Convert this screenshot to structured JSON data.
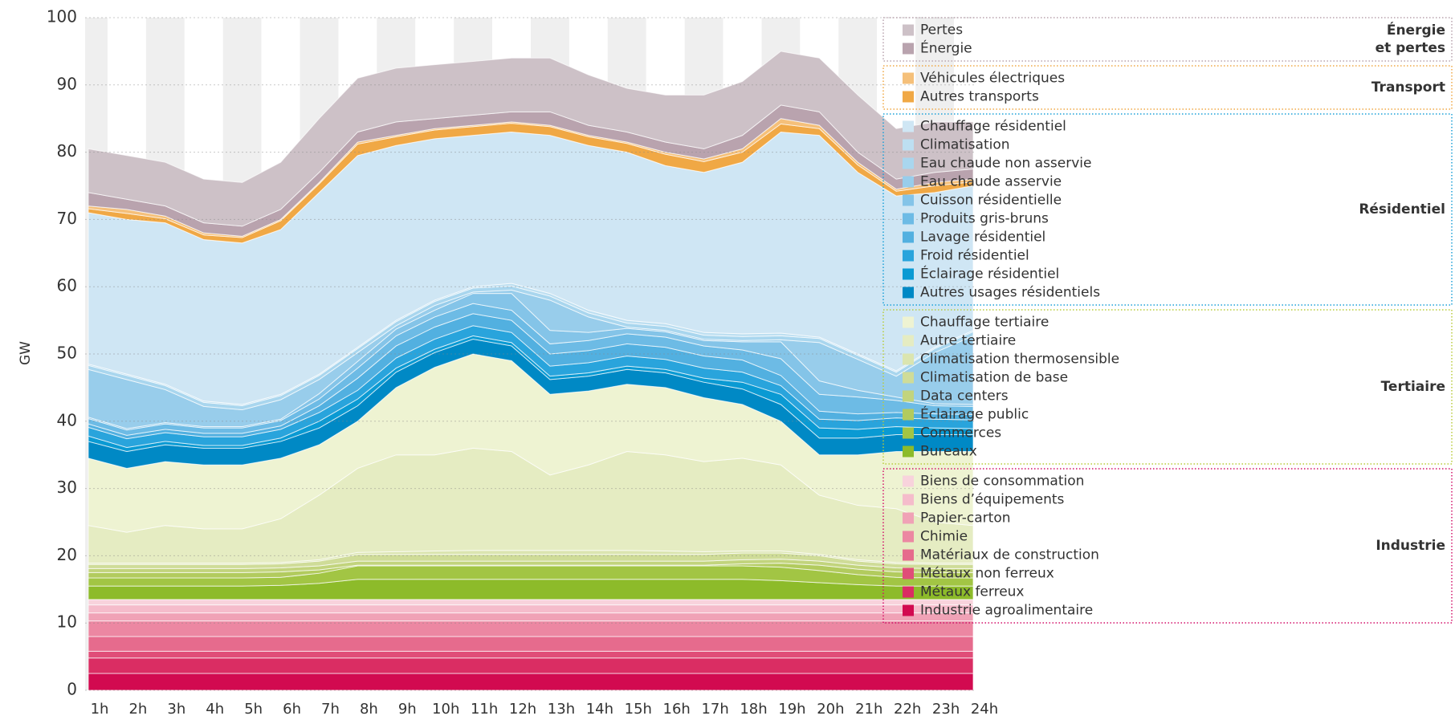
{
  "chart_data": {
    "type": "stacked_area",
    "y_label": "GW",
    "ylim": [
      0,
      100
    ],
    "yticks": [
      0,
      10,
      20,
      30,
      40,
      50,
      60,
      70,
      80,
      90,
      100
    ],
    "grid": true,
    "legend": "right",
    "categories": [
      "1h",
      "2h",
      "3h",
      "4h",
      "5h",
      "6h",
      "7h",
      "8h",
      "9h",
      "10h",
      "11h",
      "12h",
      "13h",
      "14h",
      "15h",
      "16h",
      "17h",
      "18h",
      "19h",
      "20h",
      "21h",
      "22h",
      "23h",
      "24h"
    ],
    "groups": [
      {
        "label": [
          "Industrie"
        ],
        "color": "#d4116a",
        "series": [
          {
            "name": "Industrie agroalimentaire",
            "color": "#d20a50",
            "values": [
              2.5,
              2.5,
              2.5,
              2.5,
              2.5,
              2.5,
              2.5,
              2.5,
              2.5,
              2.5,
              2.5,
              2.5,
              2.5,
              2.5,
              2.5,
              2.5,
              2.5,
              2.5,
              2.5,
              2.5,
              2.5,
              2.5,
              2.5,
              2.5
            ]
          },
          {
            "name": "Métaux ferreux",
            "color": "#da2d63",
            "values": [
              2.3,
              2.3,
              2.3,
              2.3,
              2.3,
              2.3,
              2.3,
              2.3,
              2.3,
              2.3,
              2.3,
              2.3,
              2.3,
              2.3,
              2.3,
              2.3,
              2.3,
              2.3,
              2.3,
              2.3,
              2.3,
              2.3,
              2.3,
              2.3
            ]
          },
          {
            "name": "Métaux non ferreux",
            "color": "#e04d78",
            "values": [
              1.0,
              1.0,
              1.0,
              1.0,
              1.0,
              1.0,
              1.0,
              1.0,
              1.0,
              1.0,
              1.0,
              1.0,
              1.0,
              1.0,
              1.0,
              1.0,
              1.0,
              1.0,
              1.0,
              1.0,
              1.0,
              1.0,
              1.0,
              1.0
            ]
          },
          {
            "name": "Matériaux de construction",
            "color": "#e66b8d",
            "values": [
              2.2,
              2.2,
              2.2,
              2.2,
              2.2,
              2.2,
              2.2,
              2.2,
              2.2,
              2.2,
              2.2,
              2.2,
              2.2,
              2.2,
              2.2,
              2.2,
              2.2,
              2.2,
              2.2,
              2.2,
              2.2,
              2.2,
              2.2,
              2.2
            ]
          },
          {
            "name": "Chimie",
            "color": "#ec87a2",
            "values": [
              2.3,
              2.3,
              2.3,
              2.3,
              2.3,
              2.3,
              2.3,
              2.3,
              2.3,
              2.3,
              2.3,
              2.3,
              2.3,
              2.3,
              2.3,
              2.3,
              2.3,
              2.3,
              2.3,
              2.3,
              2.3,
              2.3,
              2.3,
              2.3
            ]
          },
          {
            "name": "Papier-carton",
            "color": "#f0a2b6",
            "values": [
              1.2,
              1.2,
              1.2,
              1.2,
              1.2,
              1.2,
              1.2,
              1.2,
              1.2,
              1.2,
              1.2,
              1.2,
              1.2,
              1.2,
              1.2,
              1.2,
              1.2,
              1.2,
              1.2,
              1.2,
              1.2,
              1.2,
              1.2,
              1.2
            ]
          },
          {
            "name": "Biens d’équipements",
            "color": "#f5bccb",
            "values": [
              1.2,
              1.2,
              1.2,
              1.2,
              1.2,
              1.2,
              1.2,
              1.2,
              1.2,
              1.2,
              1.2,
              1.2,
              1.2,
              1.2,
              1.2,
              1.2,
              1.2,
              1.2,
              1.2,
              1.2,
              1.2,
              1.2,
              1.2,
              1.2
            ]
          },
          {
            "name": "Biens de consommation",
            "color": "#f8d3dc",
            "values": [
              0.8,
              0.8,
              0.8,
              0.8,
              0.8,
              0.8,
              0.8,
              0.8,
              0.8,
              0.8,
              0.8,
              0.8,
              0.8,
              0.8,
              0.8,
              0.8,
              0.8,
              0.8,
              0.8,
              0.8,
              0.8,
              0.8,
              0.8,
              0.8
            ]
          }
        ]
      },
      {
        "label": [
          "Tertiaire"
        ],
        "color": "#b9cc3a",
        "series": [
          {
            "name": "Bureaux",
            "color": "#8dbb2a",
            "values": [
              2,
              2,
              2,
              2,
              2,
              2.1,
              2.4,
              3,
              3,
              3,
              3,
              3,
              3,
              3,
              3,
              3,
              3,
              3,
              2.8,
              2.5,
              2.2,
              2,
              2,
              2
            ]
          },
          {
            "name": "Commerces",
            "color": "#a2c544",
            "values": [
              1.2,
              1.2,
              1.2,
              1.2,
              1.2,
              1.2,
              1.5,
              2,
              2,
              2,
              2,
              2,
              2,
              2,
              2,
              2,
              2,
              2,
              2,
              1.8,
              1.5,
              1.3,
              1.2,
              1.2
            ]
          },
          {
            "name": "Éclairage public",
            "color": "#b2cb5e",
            "values": [
              0.8,
              0.8,
              0.8,
              0.8,
              0.8,
              0.8,
              0.5,
              0.1,
              0.1,
              0.1,
              0.1,
              0.1,
              0.1,
              0.1,
              0.1,
              0.1,
              0.1,
              0.3,
              0.6,
              0.8,
              0.8,
              0.8,
              0.8,
              0.8
            ]
          },
          {
            "name": "Data centers",
            "color": "#c2d47d",
            "values": [
              0.6,
              0.6,
              0.6,
              0.6,
              0.6,
              0.6,
              0.6,
              0.6,
              0.6,
              0.6,
              0.6,
              0.6,
              0.6,
              0.6,
              0.6,
              0.6,
              0.6,
              0.6,
              0.6,
              0.6,
              0.6,
              0.6,
              0.6,
              0.6
            ]
          },
          {
            "name": "Climatisation de base",
            "color": "#cfdc98",
            "values": [
              0.6,
              0.6,
              0.6,
              0.6,
              0.6,
              0.6,
              0.7,
              1,
              1,
              1,
              1,
              1,
              1,
              1,
              1,
              1,
              1,
              1,
              0.9,
              0.8,
              0.6,
              0.6,
              0.6,
              0.6
            ]
          },
          {
            "name": "Climatisation thermosensible",
            "color": "#dbe5b0",
            "values": [
              0.2,
              0.2,
              0.2,
              0.2,
              0.2,
              0.2,
              0.2,
              0.3,
              0.4,
              0.5,
              0.6,
              0.6,
              0.6,
              0.6,
              0.6,
              0.5,
              0.4,
              0.3,
              0.3,
              0.2,
              0.2,
              0.2,
              0.2,
              0.2
            ]
          },
          {
            "name": "Autre tertiaire",
            "color": "#e5ecc2",
            "values": [
              5.6,
              4.6,
              5.6,
              5.1,
              5.1,
              6.5,
              9.6,
              12.5,
              14.4,
              14.3,
              15.2,
              14.7,
              11.2,
              12.7,
              14.7,
              14.3,
              13.4,
              13.8,
              12.8,
              8.8,
              8.1,
              8.0,
              6.1,
              5.6
            ]
          },
          {
            "name": "Chauffage tertiaire",
            "color": "#eef3d2",
            "values": [
              10,
              9.5,
              9.5,
              9.5,
              9.5,
              9,
              7.5,
              7,
              10,
              13,
              14,
              13.5,
              12,
              11,
              10,
              10,
              9.5,
              8,
              6.5,
              6,
              7.5,
              8.5,
              10.5,
              11
            ]
          }
        ]
      },
      {
        "label": [
          "Résidentiel"
        ],
        "color": "#1aa0d8",
        "series": [
          {
            "name": "Autres usages résidentiels",
            "color": "#0089c5",
            "values": [
              2.5,
              2.5,
              2.5,
              2.5,
              2.5,
              2.5,
              2.5,
              2.3,
              2.3,
              2.2,
              2.2,
              2.2,
              2.2,
              2.2,
              2.2,
              2.2,
              2.3,
              2.3,
              2.5,
              2.5,
              2.5,
              2.5,
              2.5,
              2.5
            ]
          },
          {
            "name": "Éclairage résidentiel",
            "color": "#0a9ad3",
            "values": [
              0.8,
              0.6,
              0.5,
              0.4,
              0.4,
              0.5,
              1.0,
              1.0,
              0.6,
              0.5,
              0.5,
              0.5,
              0.5,
              0.5,
              0.5,
              0.5,
              0.6,
              1.0,
              1.5,
              1.5,
              1.3,
              1.2,
              1.0,
              0.9
            ]
          },
          {
            "name": "Froid résidentiel",
            "color": "#29a4dc",
            "values": [
              1.3,
              1.3,
              1.3,
              1.3,
              1.3,
              1.3,
              1.3,
              1.3,
              1.5,
              1.5,
              1.5,
              1.5,
              1.5,
              1.5,
              1.5,
              1.5,
              1.5,
              1.5,
              1.3,
              1.3,
              1.3,
              1.3,
              1.3,
              1.3
            ]
          },
          {
            "name": "Lavage résidentiel",
            "color": "#52b0e0",
            "values": [
              0.5,
              0.5,
              0.5,
              0.5,
              0.5,
              0.5,
              1.0,
              1.8,
              1.8,
              1.8,
              1.8,
              1.8,
              1.8,
              1.8,
              1.8,
              1.8,
              1.8,
              1.8,
              1.5,
              1.2,
              1.0,
              0.8,
              0.8,
              0.8
            ]
          },
          {
            "name": "Produits gris-bruns",
            "color": "#6dbbe5",
            "values": [
              0.8,
              0.8,
              0.8,
              0.8,
              0.8,
              0.8,
              1.0,
              1.5,
              1.5,
              1.5,
              1.5,
              1.5,
              1.5,
              1.5,
              1.5,
              1.5,
              1.5,
              1.5,
              2.5,
              2.5,
              2.5,
              1.8,
              1.2,
              1.2
            ]
          },
          {
            "name": "Cuisson résidentielle",
            "color": "#84c4e8",
            "values": [
              0.2,
              0.2,
              0.2,
              0.2,
              0.2,
              0.2,
              0.8,
              1.0,
              1.0,
              1.0,
              1.5,
              2.5,
              2.0,
              1.2,
              0.8,
              0.8,
              0.8,
              1.2,
              2.5,
              2.0,
              1.0,
              0.5,
              0.3,
              0.3
            ]
          },
          {
            "name": "Eau chaude asservie",
            "color": "#98cdeb",
            "values": [
              7.1,
              7.3,
              4.9,
              3.0,
              2.5,
              2.9,
              2.1,
              1.3,
              0.5,
              0.7,
              0.2,
              0.5,
              4.5,
              2.3,
              0.2,
              0.2,
              0.2,
              0.2,
              0.3,
              5.7,
              4.6,
              3.1,
              7.6,
              10.2
            ]
          },
          {
            "name": "Eau chaude non asservie",
            "color": "#a9d6ee",
            "values": [
              0.6,
              0.6,
              0.6,
              0.6,
              0.6,
              0.6,
              0.6,
              0.6,
              0.6,
              0.6,
              0.6,
              0.6,
              0.6,
              0.6,
              0.6,
              0.6,
              0.6,
              0.6,
              0.6,
              0.6,
              0.6,
              0.6,
              0.6,
              0.6
            ]
          },
          {
            "name": "Climatisation",
            "color": "#bddff1",
            "values": [
              0.2,
              0.2,
              0.2,
              0.2,
              0.2,
              0.2,
              0.2,
              0.2,
              0.2,
              0.2,
              0.2,
              0.4,
              0.4,
              0.4,
              0.4,
              0.4,
              0.4,
              0.4,
              0.4,
              0.2,
              0.2,
              0.2,
              0.2,
              0.2
            ]
          },
          {
            "name": "Chauffage résidentiel",
            "color": "#cfe6f4",
            "values": [
              22.5,
              23,
              24,
              24,
              24,
              24.5,
              27,
              28.5,
              26,
              24,
              22.5,
              22.5,
              23.5,
              24.5,
              25,
              23.5,
              23.8,
              25.5,
              29.9,
              30,
              27,
              26,
              23,
              21.5
            ]
          }
        ]
      },
      {
        "label": [
          "Transport"
        ],
        "color": "#f0a845",
        "series": [
          {
            "name": "Autres transports",
            "color": "#f0a845",
            "values": [
              0.6,
              0.9,
              0.6,
              0.7,
              0.8,
              1.3,
              1.3,
              1.7,
              1.3,
              1.3,
              1.3,
              1.3,
              1.3,
              1.3,
              1.3,
              1.7,
              1.6,
              1.5,
              1.2,
              1.0,
              1.1,
              0.7,
              1.0,
              0.6
            ]
          },
          {
            "name": "Véhicules électriques",
            "color": "#f5c07a",
            "values": [
              0.4,
              0.6,
              0.4,
              0.3,
              0.2,
              0.2,
              0.2,
              0.3,
              0.2,
              0.2,
              0.2,
              0.2,
              0.2,
              0.2,
              0.2,
              0.3,
              0.4,
              0.5,
              0.8,
              0.5,
              0.4,
              0.3,
              0.5,
              0.4
            ]
          }
        ]
      },
      {
        "label": [
          "Énergie",
          "et pertes"
        ],
        "color": "#b9a3ae",
        "series": [
          {
            "name": "Énergie",
            "color": "#b9a3ae",
            "values": [
              2,
              1.5,
              1.5,
              1.5,
              1.5,
              1.5,
              1.5,
              1.5,
              2,
              1.5,
              1.5,
              1.5,
              2,
              1.5,
              1.5,
              1.5,
              1.5,
              2,
              2,
              2,
              1.5,
              1.5,
              1.5,
              1.5
            ]
          },
          {
            "name": "Pertes",
            "color": "#cdc1c7",
            "values": [
              6.5,
              6.5,
              6.5,
              6.5,
              6.5,
              7,
              8,
              8,
              8,
              8,
              8,
              8,
              8,
              7.5,
              6.5,
              7,
              8,
              8,
              8,
              8,
              8.5,
              7.5,
              7.5,
              7
            ]
          }
        ]
      }
    ]
  }
}
